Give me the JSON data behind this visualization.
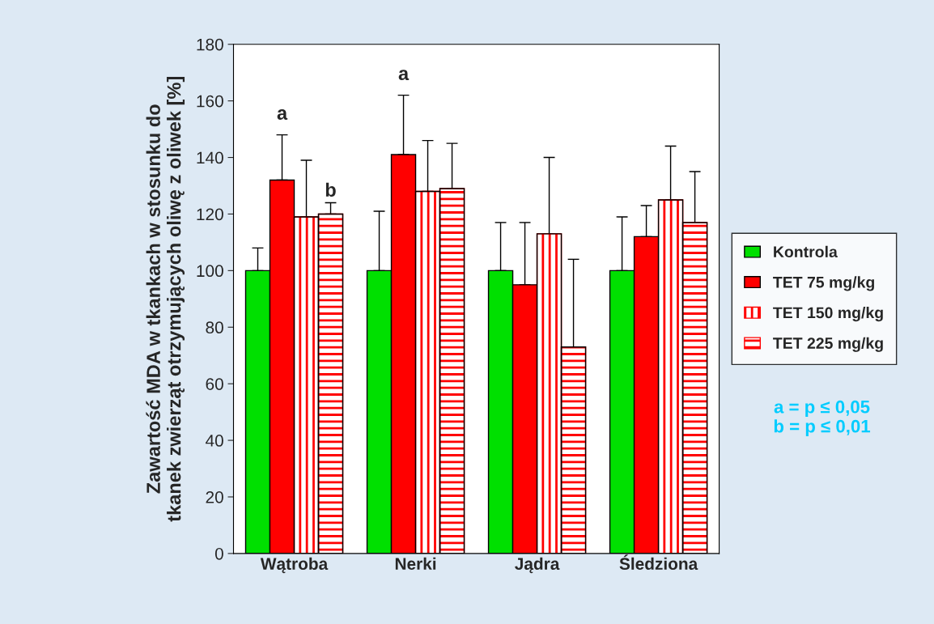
{
  "chart_data": {
    "type": "bar",
    "ylabel": "Zawartość MDA w tkankach w stosunku do\ntkanek zwierząt otrzymujących oliwę z oliwek [%]",
    "categories": [
      "Wątroba",
      "Nerki",
      "Jądra",
      "Śledziona"
    ],
    "series": [
      {
        "name": "Kontrola",
        "color": "#00e000",
        "values": [
          100,
          100,
          100,
          100
        ],
        "errors": [
          [
            100,
            108
          ],
          [
            100,
            121
          ],
          [
            100,
            117
          ],
          [
            100,
            119
          ]
        ]
      },
      {
        "name": "TET 75 mg/kg",
        "color": "#ff0000",
        "values": [
          132,
          141,
          95,
          112
        ],
        "errors": [
          [
            132,
            148
          ],
          [
            141,
            162
          ],
          [
            95,
            117
          ],
          [
            112,
            123
          ]
        ]
      },
      {
        "name": "TET 150 mg/kg",
        "color": "#ff0000",
        "values": [
          119,
          128,
          113,
          125
        ],
        "errors": [
          [
            119,
            139
          ],
          [
            128,
            146
          ],
          [
            113,
            140
          ],
          [
            125,
            144
          ]
        ]
      },
      {
        "name": "TET 225 mg/kg",
        "color": "#ff0000",
        "values": [
          120,
          129,
          73,
          117
        ],
        "errors": [
          [
            120,
            124
          ],
          [
            129,
            145
          ],
          [
            73,
            104
          ],
          [
            117,
            135
          ]
        ]
      }
    ],
    "ylim": [
      0,
      180
    ],
    "yticks": [
      0,
      20,
      40,
      60,
      80,
      100,
      120,
      140,
      160,
      180
    ],
    "grid": false,
    "legend": "right",
    "annotations": [
      "a",
      "a",
      {
        "text": "b",
        "x": "Wątroba",
        "y": 124
      },
      "a = p ≤ 0,05\nb = p ≤ 0,01"
    ]
  }
}
